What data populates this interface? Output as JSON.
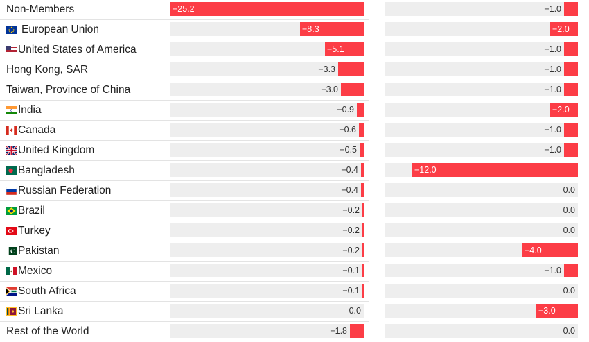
{
  "chart_data": {
    "type": "bar",
    "orientation": "horizontal",
    "title": "",
    "bar_color": "#fc3d46",
    "track_color": "#eeeeee",
    "categories": [
      {
        "label": "Non-Members",
        "flag": ""
      },
      {
        "label": "European Union",
        "flag": "eu-flag-icon"
      },
      {
        "label": "United States of America",
        "flag": "usa-flag-icon"
      },
      {
        "label": "Hong Kong, SAR",
        "flag": ""
      },
      {
        "label": "Taiwan, Province of China",
        "flag": ""
      },
      {
        "label": "India",
        "flag": "india-flag-icon"
      },
      {
        "label": "Canada",
        "flag": "canada-flag-icon"
      },
      {
        "label": "United Kingdom",
        "flag": "uk-flag-icon"
      },
      {
        "label": "Bangladesh",
        "flag": "bangladesh-flag-icon"
      },
      {
        "label": "Russian Federation",
        "flag": "russia-flag-icon"
      },
      {
        "label": "Brazil",
        "flag": "brazil-flag-icon"
      },
      {
        "label": "Turkey",
        "flag": "turkey-flag-icon"
      },
      {
        "label": "Pakistan",
        "flag": "pakistan-flag-icon"
      },
      {
        "label": "Mexico",
        "flag": "mexico-flag-icon"
      },
      {
        "label": "South Africa",
        "flag": "south-africa-flag-icon"
      },
      {
        "label": "Sri Lanka",
        "flag": "sri-lanka-flag-icon"
      },
      {
        "label": "Rest of the World",
        "flag": ""
      }
    ],
    "series": [
      {
        "values": [
          -25.2,
          -8.3,
          -5.1,
          -3.3,
          -3.0,
          -0.9,
          -0.6,
          -0.5,
          -0.4,
          -0.4,
          -0.2,
          -0.2,
          -0.2,
          -0.1,
          -0.1,
          0.0,
          -1.8
        ],
        "labels": [
          "−25.2",
          "−8.3",
          "−5.1",
          "−3.3",
          "−3.0",
          "−0.9",
          "−0.6",
          "−0.5",
          "−0.4",
          "−0.4",
          "−0.2",
          "−0.2",
          "−0.2",
          "−0.1",
          "−0.1",
          "0.0",
          "−1.8"
        ],
        "xlim": [
          -25.2,
          0
        ]
      },
      {
        "values": [
          -1.0,
          -2.0,
          -1.0,
          -1.0,
          -1.0,
          -2.0,
          -1.0,
          -1.0,
          -12.0,
          0.0,
          0.0,
          0.0,
          -4.0,
          -1.0,
          0.0,
          -3.0,
          0.0
        ],
        "labels": [
          "−1.0",
          "−2.0",
          "−1.0",
          "−1.0",
          "−1.0",
          "−2.0",
          "−1.0",
          "−1.0",
          "−12.0",
          "0.0",
          "0.0",
          "0.0",
          "−4.0",
          "−1.0",
          "0.0",
          "−3.0",
          "0.0"
        ],
        "xlim": [
          -14.0,
          0
        ]
      }
    ]
  }
}
